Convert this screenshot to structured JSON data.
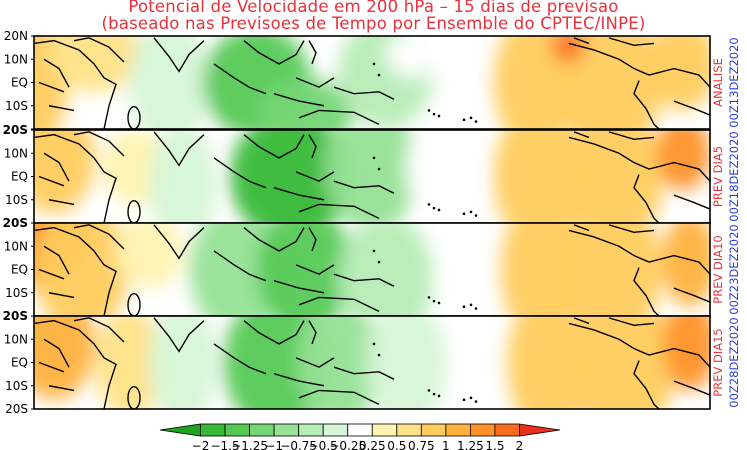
{
  "title": {
    "line1": "Potencial de Velocidade em 200 hPa – 15 dias de previsao",
    "line2": "(baseado nas Previsoes de Tempo por Ensemble do CPTEC/INPE)"
  },
  "colors": {
    "title": "#e8313a",
    "panel_label": "#e8313a",
    "date_label": "#2b3cd6"
  },
  "chart_data": {
    "type": "heatmap",
    "variable": "Potencial de Velocidade em 200 hPa",
    "lat_ticks": [
      "20N",
      "10N",
      "EQ",
      "10S",
      "20S"
    ],
    "panels": [
      {
        "label": "ANALISE",
        "date": "00Z13DEZ2020"
      },
      {
        "label": "PREV DIA5",
        "date": "00Z18DEZ2020"
      },
      {
        "label": "PREV DIA10",
        "date": "00Z23DEZ2020"
      },
      {
        "label": "PREV DIA15",
        "date": "00Z28DEZ2020"
      }
    ],
    "colorbar": {
      "tick_labels": [
        "−2",
        "−1.5",
        "−1.25",
        "−1",
        "−0.75",
        "−0.5",
        "−0.25",
        "0.25",
        "0.5",
        "0.75",
        "1",
        "1.25",
        "1.5",
        "2"
      ],
      "bins": [
        {
          "color": "#1ea51e"
        },
        {
          "color": "#37b937"
        },
        {
          "color": "#55c955"
        },
        {
          "color": "#74d674"
        },
        {
          "color": "#96e296"
        },
        {
          "color": "#b6ecb6"
        },
        {
          "color": "#d6f5d6"
        },
        {
          "color": "#ffffff"
        },
        {
          "color": "#fff3b0"
        },
        {
          "color": "#ffe287"
        },
        {
          "color": "#ffcc5e"
        },
        {
          "color": "#ffb13b"
        },
        {
          "color": "#ff9126"
        },
        {
          "color": "#fb6b1d"
        },
        {
          "color": "#e8311a"
        }
      ]
    },
    "field": [
      [
        {
          "lon": 0.0,
          "lat": 0.5,
          "rx": 0.05,
          "ry": 0.7,
          "v": 0.85
        },
        {
          "lon": 0.09,
          "lat": 0.2,
          "rx": 0.07,
          "ry": 0.4,
          "v": 0.55
        },
        {
          "lon": 0.2,
          "lat": 0.5,
          "rx": 0.06,
          "ry": 0.7,
          "v": -0.5
        },
        {
          "lon": 0.33,
          "lat": 0.5,
          "rx": 0.08,
          "ry": 0.6,
          "v": -1.35
        },
        {
          "lon": 0.4,
          "lat": 0.85,
          "rx": 0.07,
          "ry": 0.4,
          "v": -1.1
        },
        {
          "lon": 0.52,
          "lat": 0.4,
          "rx": 0.07,
          "ry": 0.6,
          "v": -0.65
        },
        {
          "lon": 0.56,
          "lat": 0.2,
          "rx": 0.04,
          "ry": 0.25,
          "v": -0.1
        },
        {
          "lon": 0.74,
          "lat": 0.5,
          "rx": 0.06,
          "ry": 0.75,
          "v": 0.75
        },
        {
          "lon": 0.85,
          "lat": 0.5,
          "rx": 0.08,
          "ry": 0.8,
          "v": 0.85
        },
        {
          "lon": 0.79,
          "lat": 0.1,
          "rx": 0.025,
          "ry": 0.18,
          "v": 1.95
        },
        {
          "lon": 0.96,
          "lat": 0.3,
          "rx": 0.05,
          "ry": 0.5,
          "v": 0.9
        }
      ],
      [
        {
          "lon": 0.03,
          "lat": 0.3,
          "rx": 0.06,
          "ry": 0.6,
          "v": 0.8
        },
        {
          "lon": 0.15,
          "lat": 0.4,
          "rx": 0.05,
          "ry": 0.4,
          "v": 0.35
        },
        {
          "lon": 0.22,
          "lat": 0.6,
          "rx": 0.05,
          "ry": 0.7,
          "v": -0.5
        },
        {
          "lon": 0.38,
          "lat": 0.5,
          "rx": 0.09,
          "ry": 0.7,
          "v": -1.6
        },
        {
          "lon": 0.5,
          "lat": 0.4,
          "rx": 0.07,
          "ry": 0.7,
          "v": -0.9
        },
        {
          "lon": 0.6,
          "lat": 0.4,
          "rx": 0.05,
          "ry": 0.6,
          "v": -0.25
        },
        {
          "lon": 0.75,
          "lat": 0.5,
          "rx": 0.07,
          "ry": 0.8,
          "v": 0.8
        },
        {
          "lon": 0.86,
          "lat": 0.5,
          "rx": 0.07,
          "ry": 0.8,
          "v": 0.95
        },
        {
          "lon": 0.96,
          "lat": 0.25,
          "rx": 0.04,
          "ry": 0.4,
          "v": 1.3
        }
      ],
      [
        {
          "lon": 0.01,
          "lat": 0.2,
          "rx": 0.07,
          "ry": 0.5,
          "v": 1.4
        },
        {
          "lon": 0.07,
          "lat": 0.5,
          "rx": 0.07,
          "ry": 0.7,
          "v": 0.9
        },
        {
          "lon": 0.17,
          "lat": 0.3,
          "rx": 0.05,
          "ry": 0.4,
          "v": 0.35
        },
        {
          "lon": 0.3,
          "lat": 0.5,
          "rx": 0.07,
          "ry": 0.7,
          "v": -0.9
        },
        {
          "lon": 0.4,
          "lat": 0.5,
          "rx": 0.07,
          "ry": 0.7,
          "v": -1.3
        },
        {
          "lon": 0.52,
          "lat": 0.6,
          "rx": 0.07,
          "ry": 0.7,
          "v": -0.7
        },
        {
          "lon": 0.75,
          "lat": 0.5,
          "rx": 0.06,
          "ry": 0.8,
          "v": 0.8
        },
        {
          "lon": 0.85,
          "lat": 0.5,
          "rx": 0.08,
          "ry": 0.8,
          "v": 0.85
        },
        {
          "lon": 0.97,
          "lat": 0.4,
          "rx": 0.04,
          "ry": 0.5,
          "v": 1.1
        }
      ],
      [
        {
          "lon": 0.03,
          "lat": 0.3,
          "rx": 0.06,
          "ry": 0.6,
          "v": 1.0
        },
        {
          "lon": 0.14,
          "lat": 0.5,
          "rx": 0.05,
          "ry": 0.6,
          "v": 0.55
        },
        {
          "lon": 0.22,
          "lat": 0.5,
          "rx": 0.05,
          "ry": 0.7,
          "v": -0.35
        },
        {
          "lon": 0.36,
          "lat": 0.5,
          "rx": 0.08,
          "ry": 0.75,
          "v": -1.3
        },
        {
          "lon": 0.45,
          "lat": 0.5,
          "rx": 0.06,
          "ry": 0.7,
          "v": -1.0
        },
        {
          "lon": 0.55,
          "lat": 0.5,
          "rx": 0.06,
          "ry": 0.7,
          "v": -0.4
        },
        {
          "lon": 0.76,
          "lat": 0.5,
          "rx": 0.06,
          "ry": 0.8,
          "v": 0.75
        },
        {
          "lon": 0.87,
          "lat": 0.5,
          "rx": 0.08,
          "ry": 0.8,
          "v": 0.8
        },
        {
          "lon": 0.97,
          "lat": 0.3,
          "rx": 0.04,
          "ry": 0.5,
          "v": 1.25
        }
      ]
    ]
  }
}
